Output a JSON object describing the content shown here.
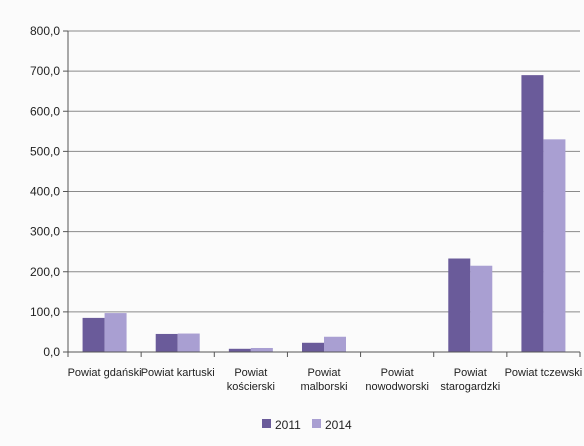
{
  "chart_data": {
    "type": "bar",
    "title": "",
    "xlabel": "",
    "ylabel": "",
    "ylim": [
      0,
      800
    ],
    "y_ticks": [
      "0,0",
      "100,0",
      "200,0",
      "300,0",
      "400,0",
      "500,0",
      "600,0",
      "700,0",
      "800,0"
    ],
    "categories": [
      [
        "Powiat gdański"
      ],
      [
        "Powiat kartuski"
      ],
      [
        "Powiat",
        "kościerski"
      ],
      [
        "Powiat",
        "malborski"
      ],
      [
        "Powiat",
        "nowodworski"
      ],
      [
        "Powiat",
        "starogardzki"
      ],
      [
        "Powiat tczewski"
      ]
    ],
    "series": [
      {
        "name": "2011",
        "color": "#6a5b9a",
        "values": [
          85,
          45,
          8,
          23,
          0,
          233,
          690
        ]
      },
      {
        "name": "2014",
        "color": "#a99fd2",
        "values": [
          97,
          46,
          10,
          38,
          0,
          215,
          530
        ]
      }
    ],
    "grid": true,
    "legend": "bottom"
  }
}
